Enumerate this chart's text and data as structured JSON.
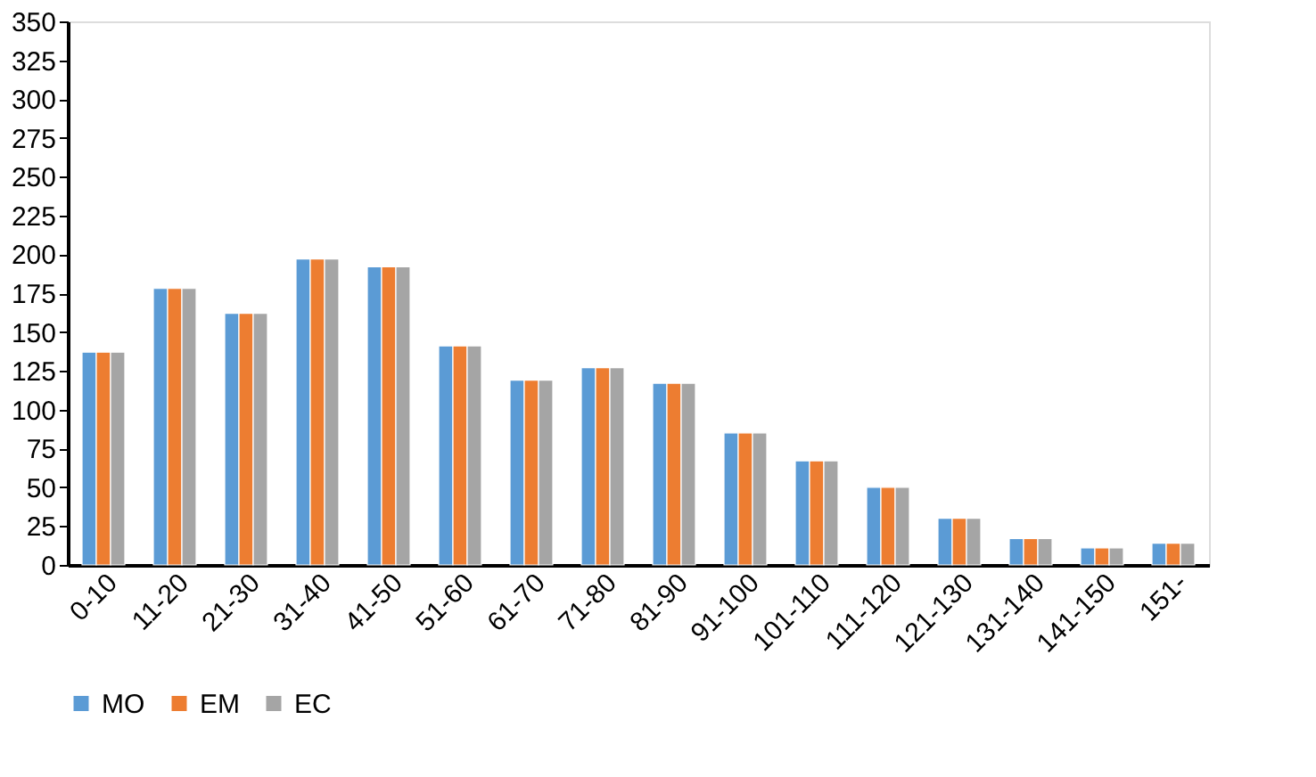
{
  "chart_data": {
    "type": "bar",
    "categories": [
      "0-10",
      "11-20",
      "21-30",
      "31-40",
      "41-50",
      "51-60",
      "61-70",
      "71-80",
      "81-90",
      "91-100",
      "101-110",
      "111-120",
      "121-130",
      "131-140",
      "141-150",
      "151-"
    ],
    "series": [
      {
        "name": "MO",
        "color": "#5b9bd5",
        "values": [
          137,
          178,
          162,
          197,
          192,
          141,
          119,
          127,
          117,
          85,
          67,
          50,
          30,
          17,
          11,
          14
        ]
      },
      {
        "name": "EM",
        "color": "#ed7d31",
        "values": [
          137,
          178,
          162,
          197,
          192,
          141,
          119,
          127,
          117,
          85,
          67,
          50,
          30,
          17,
          11,
          14
        ]
      },
      {
        "name": "EC",
        "color": "#a5a5a5",
        "values": [
          137,
          178,
          162,
          197,
          192,
          141,
          119,
          127,
          117,
          85,
          67,
          50,
          30,
          17,
          11,
          14
        ]
      }
    ],
    "ylim": [
      0,
      350
    ],
    "yticks": [
      0,
      25,
      50,
      75,
      100,
      125,
      150,
      175,
      200,
      225,
      250,
      275,
      300,
      325,
      350
    ],
    "grid": false,
    "legend": "bottom"
  }
}
